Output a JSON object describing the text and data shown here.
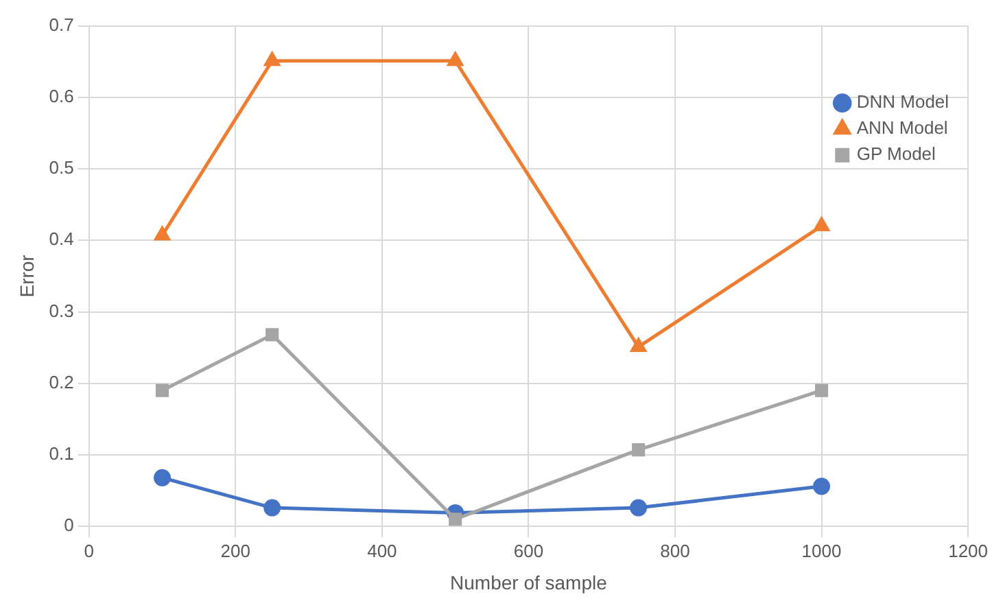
{
  "chart_data": {
    "type": "line",
    "xlabel": "Number of sample",
    "ylabel": "Error",
    "x": [
      100,
      250,
      500,
      750,
      1000
    ],
    "series": [
      {
        "name": "DNN Model",
        "color": "#4472c4",
        "marker": "circle",
        "values": [
          0.068,
          0.026,
          0.019,
          0.026,
          0.056
        ]
      },
      {
        "name": "ANN Model",
        "color": "#ed7d31",
        "marker": "triangle",
        "values": [
          0.407,
          0.651,
          0.651,
          0.251,
          0.42
        ]
      },
      {
        "name": "GP Model",
        "color": "#a5a5a5",
        "marker": "square",
        "values": [
          0.19,
          0.268,
          0.01,
          0.107,
          0.19
        ]
      }
    ],
    "xlim": [
      0,
      1200
    ],
    "xticks": [
      0,
      200,
      400,
      600,
      800,
      1000,
      1200
    ],
    "ylim": [
      0,
      0.7
    ],
    "yticks": [
      0,
      0.1,
      0.2,
      0.3,
      0.4,
      0.5,
      0.6,
      0.7
    ],
    "grid": true,
    "legend": "top right"
  }
}
